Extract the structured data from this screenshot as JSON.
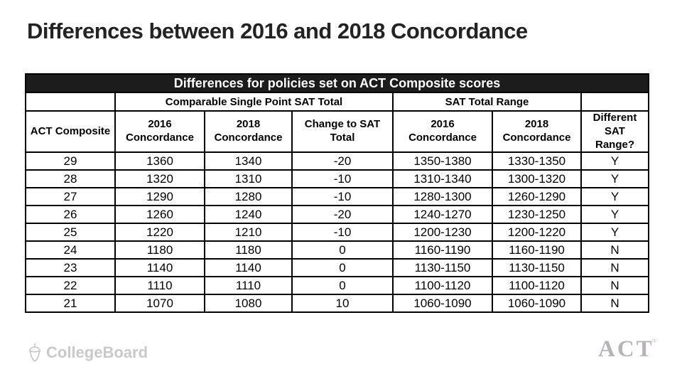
{
  "slide": {
    "title": "Differences between 2016 and 2018 Concordance"
  },
  "table": {
    "banner": "Differences for policies set on ACT Composite scores",
    "group_headers": {
      "left_blank": "",
      "single_point": "Comparable Single Point SAT Total",
      "range": "SAT Total Range",
      "right_blank": ""
    },
    "columns": [
      "ACT Composite",
      "2016\nConcordance",
      "2018\nConcordance",
      "Change to SAT\nTotal",
      "2016\nConcordance",
      "2018\nConcordance",
      "Different\nSAT\nRange?"
    ],
    "rows": [
      [
        "29",
        "1360",
        "1340",
        "-20",
        "1350-1380",
        "1330-1350",
        "Y"
      ],
      [
        "28",
        "1320",
        "1310",
        "-10",
        "1310-1340",
        "1300-1320",
        "Y"
      ],
      [
        "27",
        "1290",
        "1280",
        "-10",
        "1280-1300",
        "1260-1290",
        "Y"
      ],
      [
        "26",
        "1260",
        "1240",
        "-20",
        "1240-1270",
        "1230-1250",
        "Y"
      ],
      [
        "25",
        "1220",
        "1210",
        "-10",
        "1200-1230",
        "1200-1220",
        "Y"
      ],
      [
        "24",
        "1180",
        "1180",
        "0",
        "1160-1190",
        "1160-1190",
        "N"
      ],
      [
        "23",
        "1140",
        "1140",
        "0",
        "1130-1150",
        "1130-1150",
        "N"
      ],
      [
        "22",
        "1110",
        "1110",
        "0",
        "1100-1120",
        "1100-1120",
        "N"
      ],
      [
        "21",
        "1070",
        "1080",
        "10",
        "1060-1090",
        "1060-1090",
        "N"
      ]
    ]
  },
  "footer": {
    "collegeboard_label": "CollegeBoard",
    "act_label": "ACT",
    "act_registered": "®"
  },
  "colors": {
    "banner_bg": "#1c1c1c",
    "banner_text": "#ffffff",
    "title_text": "#232323",
    "table_border": "#000000",
    "logo_gray": "#c9c9c9",
    "act_gray": "#b7b4b7",
    "act_accent_red": "#cf8b84"
  }
}
